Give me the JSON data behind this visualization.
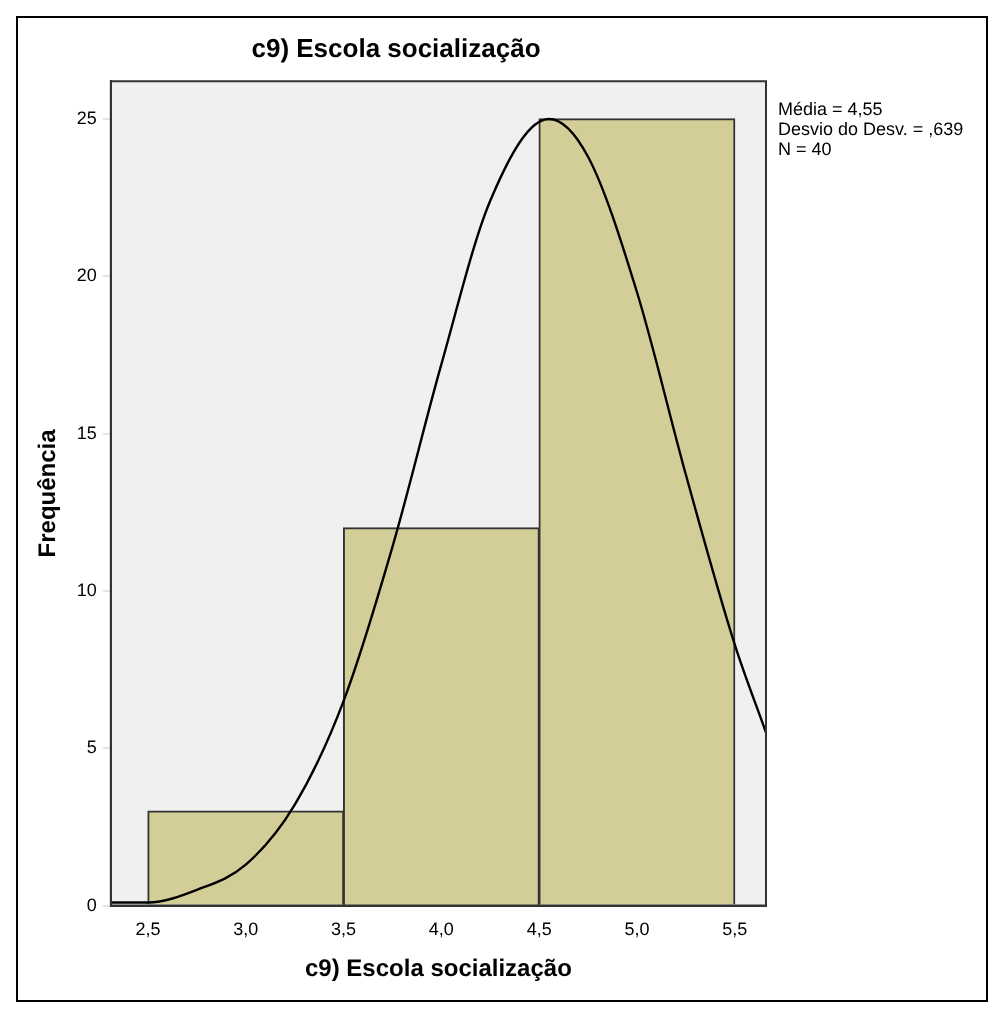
{
  "chart_data": {
    "type": "histogram",
    "title": "c9) Escola socialização",
    "xlabel": "c9) Escola socialização",
    "ylabel": "Frequência",
    "bins": [
      2.5,
      3.5,
      4.5,
      5.5
    ],
    "values": [
      3,
      12,
      25
    ],
    "color": "#d3ce97",
    "series": [
      {
        "type": "line",
        "color": "#000000",
        "x": [
          2.31,
          2.5,
          2.75,
          3.0,
          3.25,
          3.5,
          3.75,
          4.0,
          4.25,
          4.55,
          4.75,
          5.0,
          5.25,
          5.5,
          5.66
        ],
        "values": [
          0.1,
          0.1,
          0.5,
          1.3,
          3.2,
          6.5,
          11.4,
          17.2,
          22.4,
          25.0,
          23.8,
          19.5,
          13.7,
          8.3,
          5.5
        ]
      }
    ],
    "xlim": [
      2.31,
      5.66
    ],
    "xticks": [
      {
        "value": 2.5,
        "label": "2,5"
      },
      {
        "value": 3.0,
        "label": "3,0"
      },
      {
        "value": 3.5,
        "label": "3,5"
      },
      {
        "value": 4.0,
        "label": "4,0"
      },
      {
        "value": 4.5,
        "label": "4,5"
      },
      {
        "value": 5.0,
        "label": "5,0"
      },
      {
        "value": 5.5,
        "label": "5,5"
      }
    ],
    "ylim": [
      0,
      26.2
    ],
    "yticks": [
      0,
      5,
      10,
      15,
      20,
      25
    ],
    "grid": false,
    "legend": false,
    "annotations": [
      "Média = 4,55",
      "Desvio do Desv. = ,639",
      "N = 40"
    ]
  }
}
